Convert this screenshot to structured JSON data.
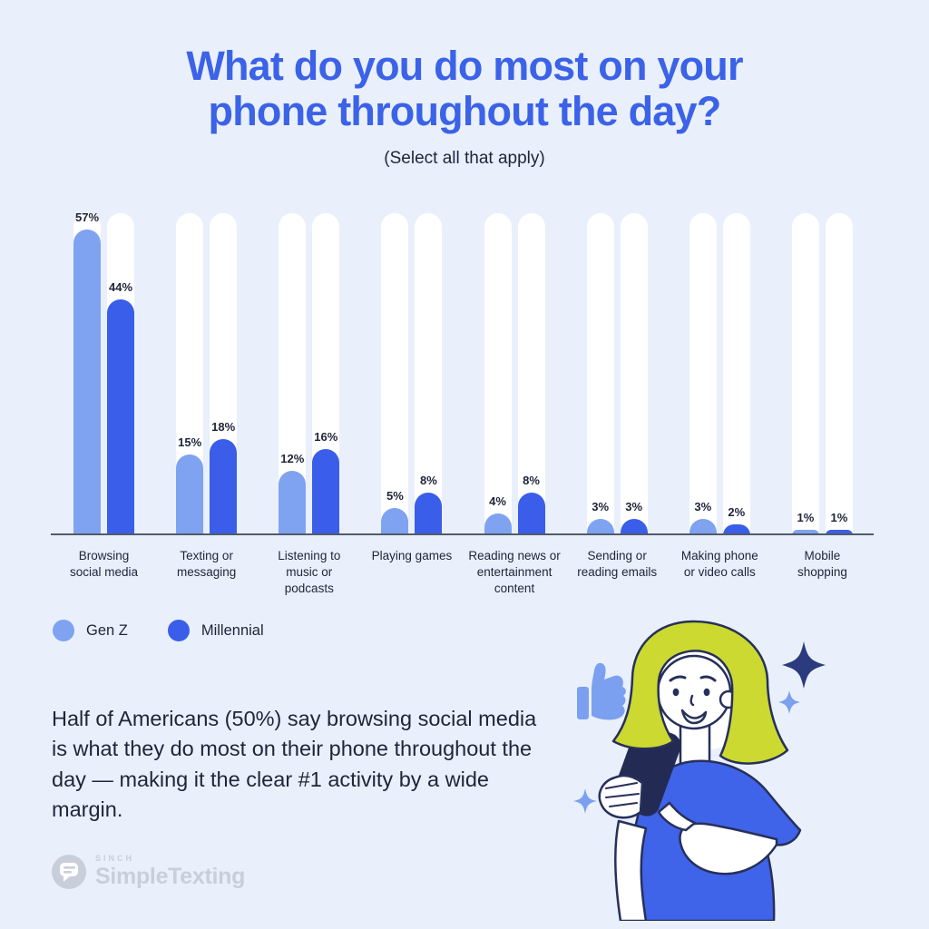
{
  "colors": {
    "background": "#E9F0FC",
    "title": "#3B62E7",
    "text": "#20263A",
    "track": "#FFFFFF",
    "axis": "#525B68",
    "logo": "#C9CFDA",
    "hair": "#CBD930",
    "shirt": "#3F63E9",
    "phone": "#232B54",
    "phone_camera": "#4A5A9C",
    "outline": "#27305A",
    "star": "#2B3B7E",
    "accent": "#7BA0EF"
  },
  "header": {
    "title": "What do you do most on your phone throughout the day?",
    "subtitle": "(Select all that apply)"
  },
  "chart_data": {
    "type": "bar",
    "title": "What do you do most on your phone throughout the day?",
    "subtitle": "(Select all that apply)",
    "categories": [
      "Browsing\nsocial media",
      "Texting or\nmessaging",
      "Listening to\nmusic or\npodcasts",
      "Playing games",
      "Reading news or\nentertainment\ncontent",
      "Sending or\nreading emails",
      "Making phone\nor video calls",
      "Mobile\nshopping"
    ],
    "series": [
      {
        "name": "Gen Z",
        "color": "#7FA2F1",
        "values": [
          57,
          15,
          12,
          5,
          4,
          3,
          3,
          1
        ]
      },
      {
        "name": "Millennial",
        "color": "#3A5EE9",
        "values": [
          44,
          18,
          16,
          8,
          8,
          3,
          2,
          1
        ]
      }
    ],
    "value_suffix": "%",
    "ylim": [
      0,
      60
    ],
    "grid": false,
    "legend_position": "bottom-left"
  },
  "legend": {
    "items": [
      {
        "label": "Gen Z",
        "color": "#7FA2F1"
      },
      {
        "label": "Millennial",
        "color": "#3A5EE9"
      }
    ]
  },
  "callout": {
    "text": "Half of Americans (50%) say browsing social media is what they do most on their phone throughout the day — making it the clear #1 activity by a wide margin."
  },
  "branding": {
    "tagline": "SINCH",
    "wordmark": "SimpleTexting"
  }
}
